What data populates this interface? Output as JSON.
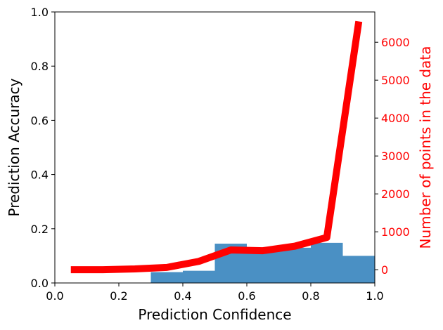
{
  "chart_data": {
    "type": "bar",
    "xlabel": "Prediction Confidence",
    "ylabel": "Prediction Accuracy",
    "y2label": "Number of points in the data",
    "xlim": [
      0.0,
      1.0
    ],
    "ylim": [
      0.0,
      1.0
    ],
    "y2lim": [
      -350,
      6800
    ],
    "x_ticks": [
      "0.0",
      "0.2",
      "0.4",
      "0.6",
      "0.8",
      "1.0"
    ],
    "y_ticks": [
      "0.0",
      "0.2",
      "0.4",
      "0.6",
      "0.8",
      "1.0"
    ],
    "y2_ticks": [
      "0",
      "1000",
      "2000",
      "3000",
      "4000",
      "5000",
      "6000"
    ],
    "bars": {
      "bin_width": 0.1,
      "x": [
        0.35,
        0.45,
        0.55,
        0.65,
        0.75,
        0.85,
        0.95
      ],
      "values": [
        0.04,
        0.045,
        0.145,
        0.12,
        0.13,
        0.148,
        0.1
      ],
      "color": "#4a90c4"
    },
    "line": {
      "x": [
        0.05,
        0.15,
        0.25,
        0.35,
        0.45,
        0.55,
        0.65,
        0.75,
        0.85,
        0.95
      ],
      "values": [
        0,
        0,
        20,
        60,
        220,
        520,
        500,
        620,
        850,
        6550
      ],
      "color": "#ff0000"
    },
    "grid": false
  }
}
